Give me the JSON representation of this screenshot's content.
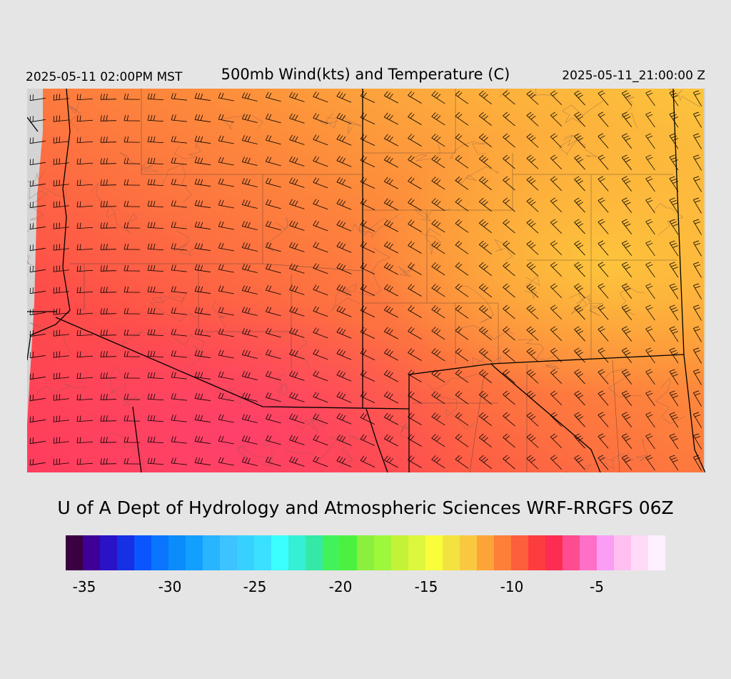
{
  "header": {
    "local_time": "2025-05-11 02:00PM MST",
    "title": "500mb Wind(kts) and Temperature (C)",
    "valid_time": "2025-05-11_21:00:00 Z"
  },
  "credit": "U of A Dept of Hydrology and Atmospheric Sciences WRF-RRGFS 06Z",
  "colorbar": {
    "colors": [
      "#3b0041",
      "#3e0097",
      "#2a12c6",
      "#1530e5",
      "#0a55ff",
      "#0a76ff",
      "#0a8cfa",
      "#139fff",
      "#29b4ff",
      "#3dc3ff",
      "#37d1ff",
      "#3ae0ff",
      "#3bffff",
      "#35f0d5",
      "#34e9a5",
      "#42f25a",
      "#4cf140",
      "#8aef3d",
      "#9df73a",
      "#c2f337",
      "#ddf63e",
      "#fafd3a",
      "#f2e340",
      "#fac83f",
      "#fda438",
      "#fd7f38",
      "#fd5e3b",
      "#fd3c3f",
      "#fc2c53",
      "#fd4c8f",
      "#fe6fc8",
      "#fb9cf5",
      "#ffbff0",
      "#ffdbf8",
      "#fff0ff"
    ],
    "ticks": [
      "-35",
      "-30",
      "-25",
      "-20",
      "-15",
      "-10",
      "-5"
    ]
  },
  "map_colors": {
    "hot": "#ff3c5a",
    "warm": "#fd6b45",
    "mid": "#fd8a3c",
    "cool": "#fda43c",
    "coolest": "#fcc63c",
    "nodata": "#d4d4d4",
    "boundary": "#000000",
    "contour": "#7a5a50"
  }
}
